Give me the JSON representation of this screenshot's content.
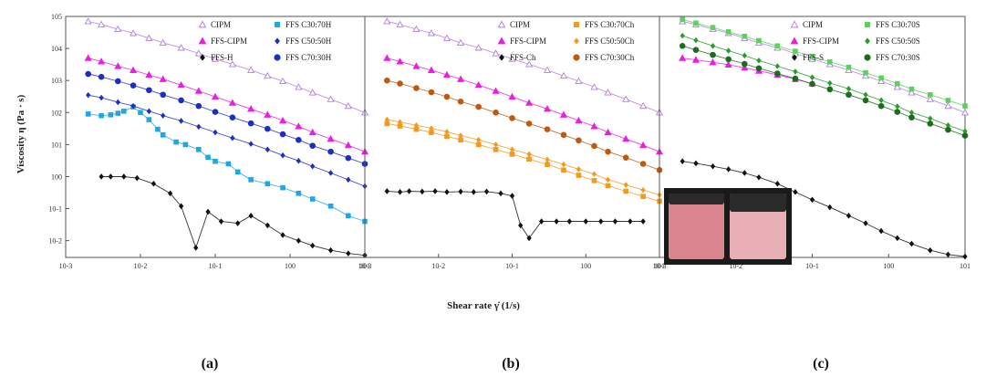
{
  "figure": {
    "ylabel": "Viscosity η (Pa · s)",
    "xlabel": "Shear rate γ̇ (1/s)",
    "panel_labels": [
      "(a)",
      "(b)",
      "(c)"
    ]
  },
  "chart_data": [
    {
      "type": "scatter",
      "panel": "(a)",
      "xscale": "log",
      "yscale": "log",
      "xlim": [
        0.001,
        10
      ],
      "ylim": [
        0.003,
        100000
      ],
      "xtick_labels": [
        "10-3",
        "10-2",
        "10-1",
        "100",
        "101"
      ],
      "ytick_labels": [
        "105",
        "104",
        "103",
        "102",
        "101",
        "100",
        "10-1",
        "10-2"
      ],
      "series": [
        {
          "name": "CIPM",
          "marker": "triangle-open",
          "color": "#b57edc",
          "x": [
            0.002,
            0.003,
            0.005,
            0.008,
            0.013,
            0.02,
            0.035,
            0.06,
            0.1,
            0.17,
            0.3,
            0.5,
            0.8,
            1.3,
            2,
            3.5,
            6,
            10
          ],
          "y": [
            70000,
            56000,
            40000,
            30000,
            21000,
            15000,
            10500,
            7000,
            4700,
            3200,
            2100,
            1400,
            950,
            620,
            420,
            260,
            160,
            100
          ]
        },
        {
          "name": "FFS-CIPM",
          "marker": "triangle-filled",
          "color": "#e91fe0",
          "x": [
            0.002,
            0.003,
            0.005,
            0.008,
            0.013,
            0.02,
            0.035,
            0.06,
            0.1,
            0.17,
            0.3,
            0.5,
            0.8,
            1.3,
            2,
            3.5,
            6,
            10
          ],
          "y": [
            5000,
            3900,
            2800,
            2100,
            1500,
            1100,
            720,
            470,
            310,
            200,
            130,
            85,
            56,
            37,
            24,
            15,
            9.5,
            6
          ]
        },
        {
          "name": "FFS-H",
          "marker": "diamond-filled",
          "color": "#111111",
          "x": [
            0.003,
            0.004,
            0.006,
            0.009,
            0.015,
            0.025,
            0.035,
            0.055,
            0.08,
            0.12,
            0.2,
            0.3,
            0.5,
            0.8,
            1.3,
            2,
            3.5,
            6,
            10
          ],
          "y": [
            1.0,
            1.0,
            1.0,
            0.9,
            0.6,
            0.3,
            0.12,
            0.006,
            0.08,
            0.04,
            0.035,
            0.06,
            0.03,
            0.015,
            0.01,
            0.007,
            0.005,
            0.004,
            0.0035
          ]
        },
        {
          "name": "FFS C30:70H",
          "marker": "square-filled",
          "color": "#1ea7e6",
          "x": [
            0.002,
            0.003,
            0.004,
            0.005,
            0.006,
            0.008,
            0.01,
            0.013,
            0.017,
            0.02,
            0.03,
            0.04,
            0.06,
            0.08,
            0.1,
            0.15,
            0.2,
            0.3,
            0.5,
            0.8,
            1.3,
            2,
            3.5,
            6,
            10
          ],
          "y": [
            90,
            80,
            85,
            95,
            110,
            150,
            100,
            60,
            30,
            20,
            12,
            10,
            7,
            4,
            3,
            2.5,
            1.4,
            0.8,
            0.6,
            0.45,
            0.3,
            0.2,
            0.12,
            0.06,
            0.04
          ]
        },
        {
          "name": "FFS C50:50H",
          "marker": "diamond-filled",
          "color": "#1c2fc2",
          "x": [
            0.002,
            0.003,
            0.005,
            0.008,
            0.013,
            0.02,
            0.035,
            0.06,
            0.1,
            0.17,
            0.3,
            0.5,
            0.8,
            1.3,
            2,
            3.5,
            6,
            10
          ],
          "y": [
            350,
            290,
            210,
            160,
            110,
            80,
            55,
            36,
            24,
            16,
            10.5,
            7,
            4.6,
            3.1,
            2.1,
            1.3,
            0.8,
            0.5
          ]
        },
        {
          "name": "FFS C70:30H",
          "marker": "circle-filled",
          "color": "#1c2fc2",
          "x": [
            0.002,
            0.003,
            0.005,
            0.008,
            0.013,
            0.02,
            0.035,
            0.06,
            0.1,
            0.17,
            0.3,
            0.5,
            0.8,
            1.3,
            2,
            3.5,
            6,
            10
          ],
          "y": [
            1600,
            1300,
            950,
            700,
            500,
            360,
            240,
            160,
            105,
            70,
            46,
            31,
            21,
            14,
            9.2,
            6,
            3.8,
            2.5
          ]
        }
      ]
    },
    {
      "type": "scatter",
      "panel": "(b)",
      "xscale": "log",
      "yscale": "log",
      "xlim": [
        0.001,
        10
      ],
      "ylim": [
        0.003,
        100000
      ],
      "xtick_labels": [
        "10-3",
        "10-2",
        "10-1",
        "100",
        "101"
      ],
      "series": [
        {
          "name": "CIPM",
          "marker": "triangle-open",
          "color": "#b57edc",
          "x": [
            0.002,
            0.003,
            0.005,
            0.008,
            0.013,
            0.02,
            0.035,
            0.06,
            0.1,
            0.17,
            0.3,
            0.5,
            0.8,
            1.3,
            2,
            3.5,
            6,
            10
          ],
          "y": [
            70000,
            56000,
            40000,
            30000,
            21000,
            15000,
            10500,
            7000,
            4700,
            3200,
            2100,
            1400,
            950,
            620,
            420,
            260,
            160,
            100
          ]
        },
        {
          "name": "FFS-CIPM",
          "marker": "triangle-filled",
          "color": "#e91fe0",
          "x": [
            0.002,
            0.003,
            0.005,
            0.008,
            0.013,
            0.02,
            0.035,
            0.06,
            0.1,
            0.17,
            0.3,
            0.5,
            0.8,
            1.3,
            2,
            3.5,
            6,
            10
          ],
          "y": [
            5000,
            3900,
            2800,
            2100,
            1500,
            1100,
            720,
            470,
            310,
            200,
            130,
            85,
            56,
            37,
            24,
            15,
            9.5,
            6
          ]
        },
        {
          "name": "FFS-Ch",
          "marker": "diamond-filled",
          "color": "#111111",
          "x": [
            0.002,
            0.003,
            0.004,
            0.006,
            0.009,
            0.013,
            0.02,
            0.03,
            0.045,
            0.07,
            0.1,
            0.13,
            0.17,
            0.25,
            0.4,
            0.6,
            1,
            1.6,
            2.5,
            4,
            6
          ],
          "y": [
            0.35,
            0.33,
            0.35,
            0.34,
            0.35,
            0.33,
            0.34,
            0.33,
            0.34,
            0.3,
            0.25,
            0.03,
            0.012,
            0.04,
            0.04,
            0.04,
            0.04,
            0.04,
            0.04,
            0.04,
            0.04
          ]
        },
        {
          "name": "FFS C30:70Ch",
          "marker": "square-filled",
          "color": "#f39a1c",
          "x": [
            0.002,
            0.003,
            0.005,
            0.008,
            0.013,
            0.02,
            0.035,
            0.06,
            0.1,
            0.17,
            0.3,
            0.5,
            0.8,
            1.3,
            2,
            3.5,
            6,
            10
          ],
          "y": [
            45,
            38,
            30,
            24,
            18,
            14,
            10,
            7,
            5,
            3.5,
            2.4,
            1.6,
            1.1,
            0.75,
            0.52,
            0.35,
            0.24,
            0.17
          ]
        },
        {
          "name": "FFS C50:50Ch",
          "marker": "diamond-filled",
          "color": "#f39a1c",
          "x": [
            0.002,
            0.003,
            0.005,
            0.008,
            0.013,
            0.02,
            0.035,
            0.06,
            0.1,
            0.17,
            0.3,
            0.5,
            0.8,
            1.3,
            2,
            3.5,
            6,
            10
          ],
          "y": [
            60,
            50,
            40,
            32,
            25,
            19,
            14,
            10,
            7,
            5,
            3.4,
            2.4,
            1.7,
            1.2,
            0.8,
            0.55,
            0.38,
            0.27
          ]
        },
        {
          "name": "FFS C70:30Ch",
          "marker": "circle-filled",
          "color": "#c0580f",
          "x": [
            0.002,
            0.003,
            0.005,
            0.008,
            0.013,
            0.02,
            0.035,
            0.06,
            0.1,
            0.17,
            0.3,
            0.5,
            0.8,
            1.3,
            2,
            3.5,
            6,
            10
          ],
          "y": [
            1000,
            800,
            580,
            430,
            310,
            220,
            150,
            100,
            67,
            45,
            30,
            20,
            13.5,
            9,
            6,
            3.9,
            2.5,
            1.6
          ]
        }
      ]
    },
    {
      "type": "scatter",
      "panel": "(c)",
      "xscale": "log",
      "yscale": "log",
      "xlim": [
        0.001,
        10
      ],
      "ylim": [
        0.003,
        100000
      ],
      "xtick_labels": [
        "10-3",
        "10-2",
        "10-1",
        "100",
        "101"
      ],
      "series": [
        {
          "name": "CIPM",
          "marker": "triangle-open",
          "color": "#b57edc",
          "x": [
            0.002,
            0.003,
            0.005,
            0.008,
            0.013,
            0.02,
            0.035,
            0.06,
            0.1,
            0.17,
            0.3,
            0.5,
            0.8,
            1.3,
            2,
            3.5,
            6,
            10
          ],
          "y": [
            70000,
            56000,
            40000,
            30000,
            21000,
            15000,
            10500,
            7000,
            4700,
            3200,
            2100,
            1400,
            950,
            620,
            420,
            260,
            160,
            100
          ]
        },
        {
          "name": "FFS-CIPM",
          "marker": "triangle-filled",
          "color": "#e91fe0",
          "x": [
            0.002,
            0.003,
            0.005,
            0.008,
            0.013,
            0.02,
            0.035,
            0.06,
            0.1
          ],
          "y": [
            5000,
            4400,
            3700,
            3100,
            2500,
            2000,
            1500,
            1100,
            800
          ]
        },
        {
          "name": "FFS-S",
          "marker": "diamond-filled",
          "color": "#111111",
          "x": [
            0.002,
            0.003,
            0.005,
            0.008,
            0.013,
            0.02,
            0.035,
            0.06,
            0.1,
            0.17,
            0.3,
            0.5,
            0.8,
            1.3,
            2,
            3.5,
            6,
            10
          ],
          "y": [
            3,
            2.6,
            2.1,
            1.7,
            1.3,
            0.95,
            0.6,
            0.33,
            0.19,
            0.11,
            0.06,
            0.035,
            0.02,
            0.012,
            0.008,
            0.005,
            0.0037,
            0.0032
          ]
        },
        {
          "name": "FFS C30:70S",
          "marker": "square-filled",
          "color": "#5bd25b",
          "x": [
            0.002,
            0.003,
            0.005,
            0.008,
            0.013,
            0.02,
            0.035,
            0.06,
            0.1,
            0.17,
            0.3,
            0.5,
            0.8,
            1.3,
            2,
            3.5,
            6,
            10
          ],
          "y": [
            80000,
            62000,
            45000,
            33000,
            24000,
            17500,
            12000,
            8200,
            5600,
            3800,
            2600,
            1750,
            1200,
            800,
            540,
            360,
            240,
            160
          ]
        },
        {
          "name": "FFS C50:50S",
          "marker": "diamond-filled",
          "color": "#2a9b2a",
          "x": [
            0.002,
            0.003,
            0.005,
            0.008,
            0.013,
            0.02,
            0.035,
            0.06,
            0.1,
            0.17,
            0.3,
            0.5,
            0.8,
            1.3,
            2,
            3.5,
            6,
            10
          ],
          "y": [
            25000,
            18000,
            12000,
            8500,
            6000,
            4200,
            2800,
            1900,
            1250,
            830,
            550,
            360,
            240,
            155,
            100,
            65,
            40,
            26
          ]
        },
        {
          "name": "FFS C70:30S",
          "marker": "circle-filled",
          "color": "#1d6b1d",
          "x": [
            0.002,
            0.003,
            0.005,
            0.008,
            0.013,
            0.02,
            0.035,
            0.06,
            0.1,
            0.17,
            0.3,
            0.5,
            0.8,
            1.3,
            2,
            3.5,
            6,
            10
          ],
          "y": [
            12000,
            9000,
            6300,
            4600,
            3300,
            2400,
            1650,
            1150,
            780,
            530,
            360,
            240,
            160,
            105,
            70,
            45,
            29,
            19
          ]
        }
      ]
    }
  ],
  "inset": {
    "content": "photo of two sample cups",
    "colors": {
      "frame": "#1a1a1a",
      "liquid": "#d9848e",
      "foam": "#2a2a2a"
    }
  }
}
